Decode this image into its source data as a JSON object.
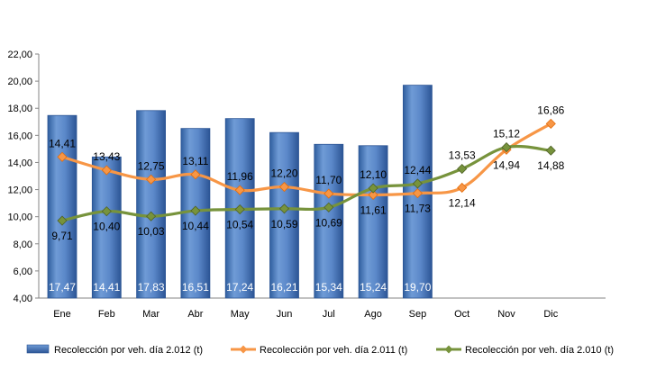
{
  "chart_data": {
    "type": "bar",
    "categories": [
      "Ene",
      "Feb",
      "Mar",
      "Abr",
      "May",
      "Jun",
      "Jul",
      "Ago",
      "Sep",
      "Oct",
      "Nov",
      "Dic"
    ],
    "ylim": [
      4,
      22
    ],
    "yticks": [
      "4,00",
      "6,00",
      "8,00",
      "10,00",
      "12,00",
      "14,00",
      "16,00",
      "18,00",
      "20,00",
      "22,00"
    ],
    "grid": false,
    "legend_position": "bottom",
    "series": [
      {
        "name": "Recolección por veh. día 2.012 (t)",
        "kind": "bar",
        "color": "#4A7EBB",
        "values": [
          17.47,
          14.41,
          17.83,
          16.51,
          17.24,
          16.21,
          15.34,
          15.24,
          19.7,
          null,
          null,
          null
        ],
        "labels": [
          "17,47",
          "14,41",
          "17,83",
          "16,51",
          "17,24",
          "16,21",
          "15,34",
          "15,24",
          "19,70",
          "",
          "",
          ""
        ]
      },
      {
        "name": "Recolección por veh. día 2.011 (t)",
        "kind": "line",
        "color": "#F79646",
        "values": [
          14.41,
          13.43,
          12.75,
          13.11,
          11.96,
          12.2,
          11.7,
          11.61,
          11.73,
          12.14,
          14.94,
          16.86
        ],
        "labels": [
          "14,41",
          "13,43",
          "12,75",
          "13,11",
          "11,96",
          "12,20",
          "11,70",
          "11,61",
          "11,73",
          "12,14",
          "14,94",
          "16,86"
        ]
      },
      {
        "name": "Recolección por veh. día 2.010 (t)",
        "kind": "line",
        "color": "#77933C",
        "values": [
          9.71,
          10.4,
          10.03,
          10.44,
          10.54,
          10.59,
          10.69,
          12.1,
          12.44,
          13.53,
          15.12,
          14.88
        ],
        "labels": [
          "9,71",
          "10,40",
          "10,03",
          "10,44",
          "10,54",
          "10,59",
          "10,69",
          "12,10",
          "12,44",
          "13,53",
          "15,12",
          "14,88"
        ]
      }
    ]
  }
}
